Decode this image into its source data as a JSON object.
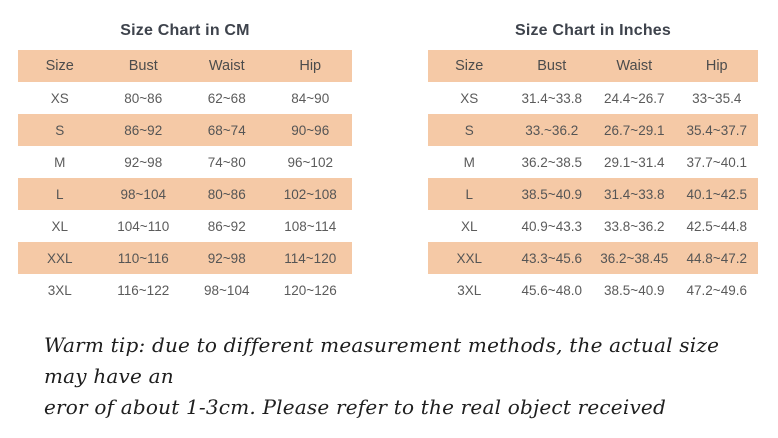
{
  "colors": {
    "band": "#f5c9a6",
    "cell_text": "#5b5b5b",
    "title_text": "#3e434c",
    "note_text": "#1e1e1e",
    "background": "#ffffff"
  },
  "chart_data": [
    {
      "type": "table",
      "title": "Size Chart in CM",
      "headers": [
        "Size",
        "Bust",
        "Waist",
        "Hip"
      ],
      "rows": [
        [
          "XS",
          "80~86",
          "62~68",
          "84~90"
        ],
        [
          "S",
          "86~92",
          "68~74",
          "90~96"
        ],
        [
          "M",
          "92~98",
          "74~80",
          "96~102"
        ],
        [
          "L",
          "98~104",
          "80~86",
          "102~108"
        ],
        [
          "XL",
          "104~110",
          "86~92",
          "108~114"
        ],
        [
          "XXL",
          "110~116",
          "92~98",
          "114~120"
        ],
        [
          "3XL",
          "116~122",
          "98~104",
          "120~126"
        ]
      ],
      "banded_rows": "header plus every second data row (S, L, XXL) highlighted peach"
    },
    {
      "type": "table",
      "title": "Size Chart in Inches",
      "headers": [
        "Size",
        "Bust",
        "Waist",
        "Hip"
      ],
      "rows": [
        [
          "XS",
          "31.4~33.8",
          "24.4~26.7",
          "33~35.4"
        ],
        [
          "S",
          "33.~36.2",
          "26.7~29.1",
          "35.4~37.7"
        ],
        [
          "M",
          "36.2~38.5",
          "29.1~31.4",
          "37.7~40.1"
        ],
        [
          "L",
          "38.5~40.9",
          "31.4~33.8",
          "40.1~42.5"
        ],
        [
          "XL",
          "40.9~43.3",
          "33.8~36.2",
          "42.5~44.8"
        ],
        [
          "XXL",
          "43.3~45.6",
          "36.2~38.45",
          "44.8~47.2"
        ],
        [
          "3XL",
          "45.6~48.0",
          "38.5~40.9",
          "47.2~49.6"
        ]
      ],
      "banded_rows": "header plus every second data row (S, L, XXL) highlighted peach"
    }
  ],
  "note": {
    "line1": "Warm tip: due to different measurement methods, the actual size may have an",
    "line2": "eror of about 1-3cm. Please refer to the real object received"
  }
}
